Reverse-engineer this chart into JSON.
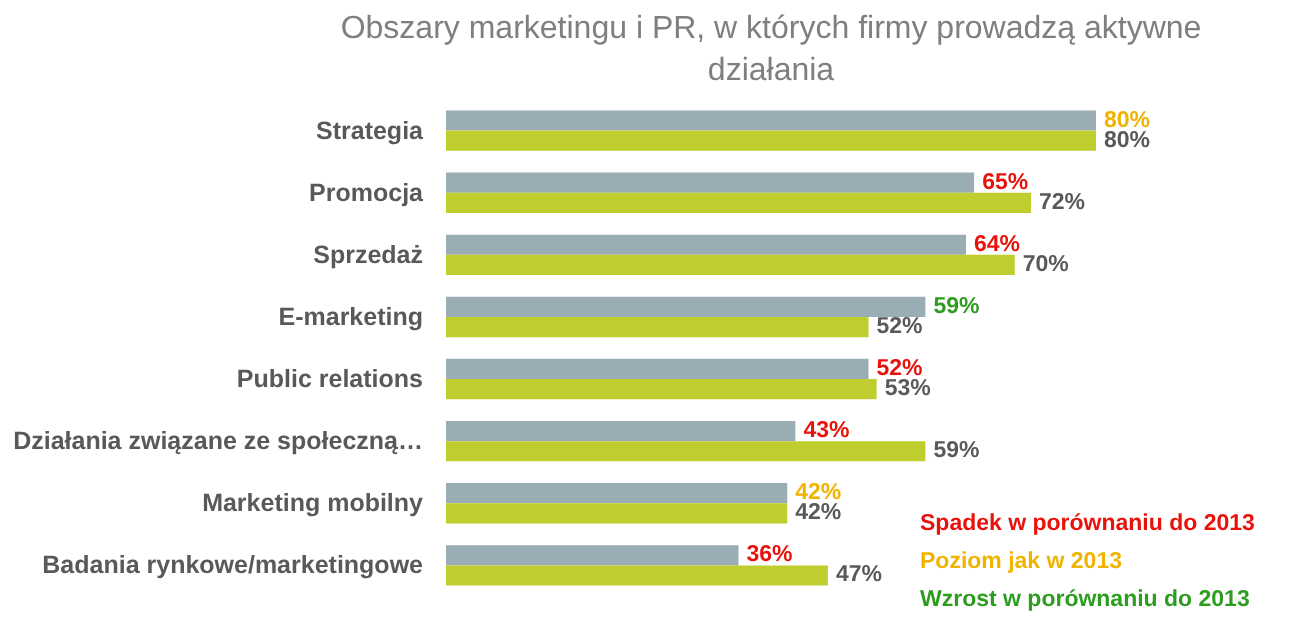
{
  "chart_data": {
    "type": "bar",
    "orientation": "horizontal",
    "xlim": [
      0,
      80
    ],
    "tick_labels": false,
    "title": "Obszary marketingu i PR, w których firmy prowadzą aktywne działania",
    "categories": [
      "Strategia",
      "Promocja",
      "Sprzedaż",
      "E-marketing",
      "Public relations",
      "Działania związane ze społeczną…",
      "Marketing mobilny",
      "Badania rynkowe/marketingowe"
    ],
    "series": [
      {
        "color": "#9aacb4",
        "values": [
          80,
          65,
          64,
          59,
          52,
          43,
          42,
          36
        ],
        "value_labels": [
          "80%",
          "65%",
          "64%",
          "59%",
          "52%",
          "43%",
          "42%",
          "36%"
        ]
      },
      {
        "color": "#bfce2e",
        "values": [
          80,
          72,
          70,
          52,
          53,
          59,
          42,
          47
        ],
        "value_labels": [
          "80%",
          "72%",
          "70%",
          "52%",
          "53%",
          "59%",
          "42%",
          "47%"
        ]
      }
    ],
    "annotations": [
      "Spadek w porównaniu do 2013",
      "Poziom jak w 2013",
      "Wzrost w porównaniu do 2013"
    ]
  }
}
